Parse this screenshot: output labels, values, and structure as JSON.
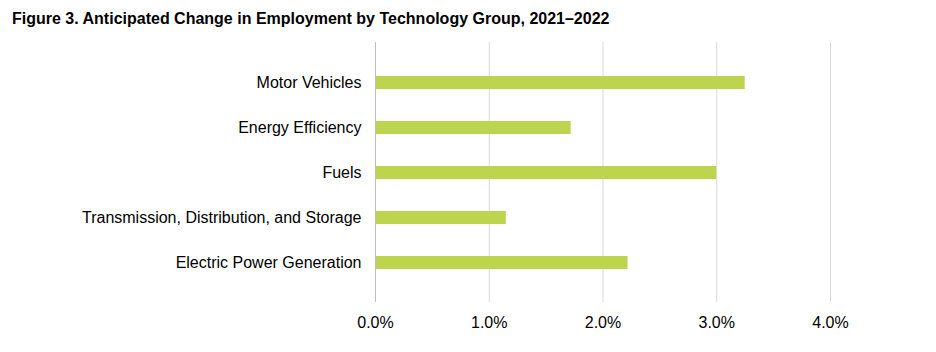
{
  "chart_data": {
    "type": "bar",
    "orientation": "horizontal",
    "title": "Figure 3. Anticipated Change in Employment by Technology Group, 2021–2022",
    "categories": [
      "Motor Vehicles",
      "Energy Efficiency",
      "Fuels",
      "Transmission, Distribution, and Storage",
      "Electric Power Generation"
    ],
    "values": [
      3.25,
      1.72,
      3.0,
      1.15,
      2.22
    ],
    "color": "#bdd44f",
    "xlim": [
      0,
      4
    ],
    "xticks": [
      {
        "value": 0,
        "label": "0.0%"
      },
      {
        "value": 1,
        "label": "1.0%"
      },
      {
        "value": 2,
        "label": "2.0%"
      },
      {
        "value": 3,
        "label": "3.0%"
      },
      {
        "value": 4,
        "label": "4.0%"
      }
    ],
    "grid": true
  }
}
